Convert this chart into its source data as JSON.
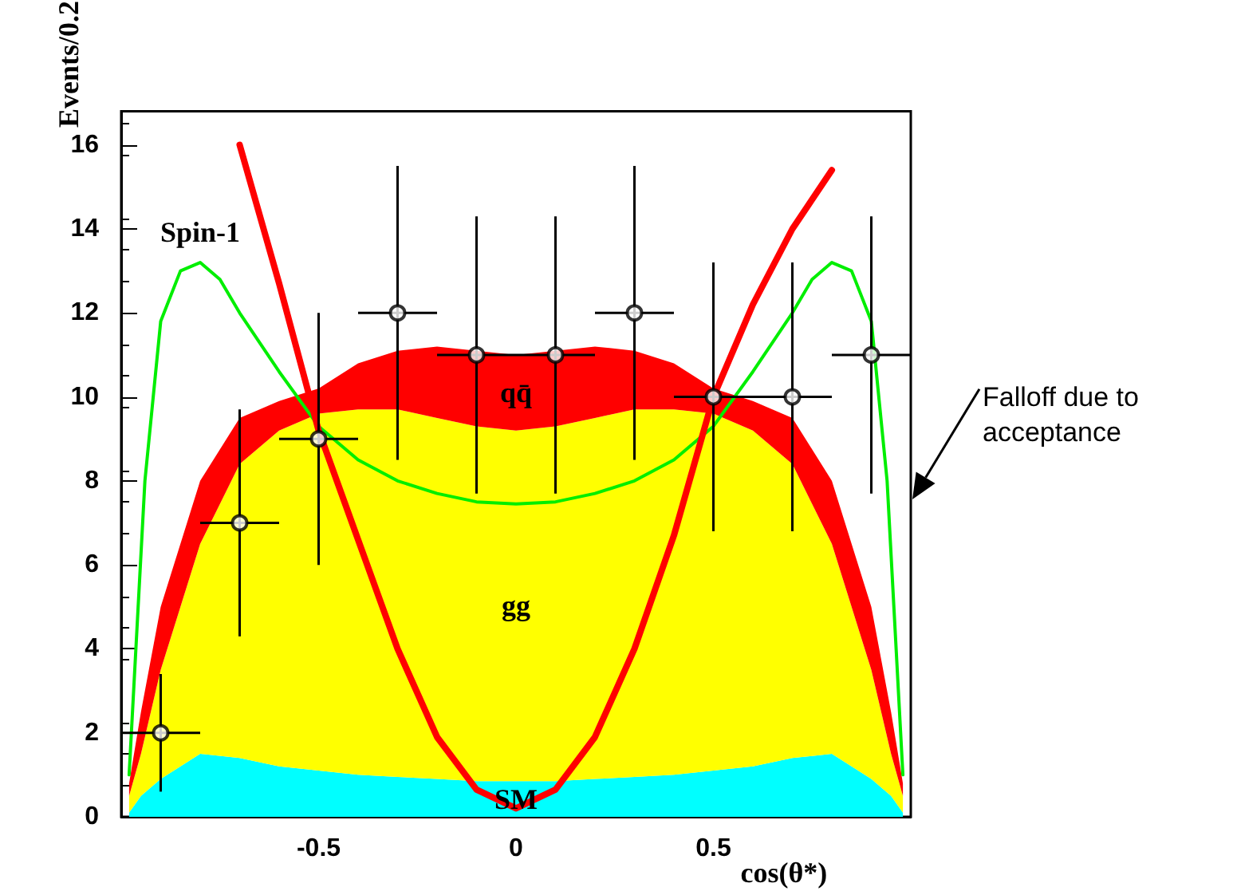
{
  "chart_data": {
    "type": "area",
    "xlabel": "cos(θ*)",
    "ylabel": "Events/0.2",
    "xlim": [
      -1,
      1
    ],
    "xticks": [
      -0.5,
      0,
      0.5
    ],
    "ylim": [
      0,
      16.8
    ],
    "yticks": [
      0,
      2,
      4,
      6,
      8,
      10,
      12,
      14,
      16
    ],
    "stacked": true,
    "grid": false,
    "legend": false,
    "x": [
      -0.98,
      -0.95,
      -0.9,
      -0.85,
      -0.8,
      -0.7,
      -0.6,
      -0.5,
      -0.4,
      -0.3,
      -0.2,
      -0.1,
      0,
      0.1,
      0.2,
      0.3,
      0.4,
      0.5,
      0.6,
      0.7,
      0.8,
      0.85,
      0.9,
      0.95,
      0.98
    ],
    "series": [
      {
        "name": "SM",
        "color": "#00ffff",
        "values": [
          0.1,
          0.5,
          0.9,
          1.2,
          1.5,
          1.4,
          1.2,
          1.1,
          1.0,
          0.95,
          0.9,
          0.85,
          0.85,
          0.85,
          0.9,
          0.95,
          1.0,
          1.1,
          1.2,
          1.4,
          1.5,
          1.2,
          0.9,
          0.5,
          0.1
        ]
      },
      {
        "name": "gg",
        "color": "#ffff00",
        "values": [
          0.4,
          1.0,
          2.6,
          3.8,
          5.0,
          7.0,
          8.0,
          8.5,
          8.7,
          8.75,
          8.6,
          8.45,
          8.35,
          8.45,
          8.6,
          8.75,
          8.7,
          8.5,
          8.0,
          7.0,
          5.0,
          3.8,
          2.6,
          1.0,
          0.4
        ]
      },
      {
        "name": "qq̄",
        "color": "#ff0000",
        "values": [
          0.3,
          1.0,
          1.5,
          1.5,
          1.5,
          1.1,
          0.7,
          0.6,
          1.1,
          1.4,
          1.7,
          1.8,
          1.8,
          1.8,
          1.7,
          1.4,
          1.1,
          0.6,
          0.7,
          1.1,
          1.5,
          1.5,
          1.5,
          1.0,
          0.3
        ]
      },
      {
        "type": "line",
        "name": "Spin-1",
        "color": "#00ee00",
        "x": [
          -0.98,
          -0.94,
          -0.9,
          -0.85,
          -0.8,
          -0.75,
          -0.7,
          -0.6,
          -0.5,
          -0.4,
          -0.3,
          -0.2,
          -0.1,
          0,
          0.1,
          0.2,
          0.3,
          0.4,
          0.5,
          0.6,
          0.7,
          0.75,
          0.8,
          0.85,
          0.9,
          0.94,
          0.98
        ],
        "values": [
          1,
          8,
          11.8,
          13,
          13.2,
          12.8,
          12,
          10.6,
          9.3,
          8.5,
          8,
          7.7,
          7.5,
          7.45,
          7.5,
          7.7,
          8,
          8.5,
          9.3,
          10.6,
          12,
          12.8,
          13.2,
          13,
          11.8,
          8,
          1
        ]
      },
      {
        "type": "line",
        "color": "#ff0000",
        "x": [
          -0.7,
          -0.6,
          -0.5,
          -0.4,
          -0.3,
          -0.2,
          -0.1,
          0,
          0.1,
          0.2,
          0.3,
          0.4,
          0.5,
          0.6,
          0.7,
          0.8
        ],
        "values": [
          16,
          12.7,
          9.2,
          6.6,
          4,
          1.9,
          0.65,
          0.2,
          0.65,
          1.9,
          4,
          6.7,
          10,
          12.2,
          14,
          15.4
        ]
      },
      {
        "type": "scatter",
        "color": "#000000",
        "marker": "circle",
        "x": [
          -0.9,
          -0.7,
          -0.5,
          -0.3,
          -0.1,
          0.1,
          0.3,
          0.5,
          0.7,
          0.9
        ],
        "values": [
          2,
          7,
          9,
          12,
          11,
          11,
          12,
          10,
          10,
          11
        ],
        "errors": [
          1.4,
          2.7,
          3,
          3.5,
          3.3,
          3.3,
          3.5,
          3.2,
          3.2,
          3.3
        ],
        "xerrors": [
          0.1,
          0.1,
          0.1,
          0.1,
          0.1,
          0.1,
          0.1,
          0.1,
          0.1,
          0.1
        ]
      }
    ],
    "annotations": [
      "Falloff due to acceptance"
    ]
  }
}
